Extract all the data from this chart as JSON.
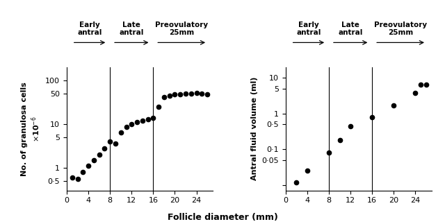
{
  "left_x": [
    1,
    2,
    3,
    4,
    5,
    6,
    7,
    8,
    9,
    10,
    11,
    12,
    13,
    14,
    15,
    16,
    17,
    18,
    19,
    20,
    21,
    22,
    23,
    24,
    25,
    26
  ],
  "left_y": [
    0.6,
    0.55,
    0.8,
    1.1,
    1.5,
    2.0,
    2.8,
    4.0,
    3.5,
    6.5,
    8.5,
    10,
    11,
    12,
    13,
    14,
    25,
    42,
    45,
    47,
    48,
    49,
    50,
    52,
    50,
    48
  ],
  "right_x": [
    2,
    4,
    8,
    10,
    12,
    16,
    20,
    24,
    25
  ],
  "right_y": [
    0.012,
    0.025,
    0.08,
    0.18,
    0.45,
    0.8,
    1.7,
    3.8,
    6.5
  ],
  "right_x2": [
    26
  ],
  "right_y2": [
    6.5
  ],
  "vline1": 8,
  "vline2": 16,
  "xlabel": "Follicle diameter (mm)",
  "left_ylabel_line1": "No. of granulosa cells",
  "left_ylabel_line2": "×10⁻⁶",
  "right_ylabel": "Antral fluid volume (ml)",
  "left_yticks": [
    0.5,
    1,
    5,
    10,
    50,
    100
  ],
  "left_ytick_labels": [
    "0·5",
    "1",
    "5",
    "10",
    "50",
    "100"
  ],
  "right_yticks": [
    0.01,
    0.05,
    0.1,
    0.5,
    1,
    5,
    10
  ],
  "right_ytick_labels": [
    "",
    "0·05",
    "0·1",
    "0·5",
    "1",
    "5",
    "10"
  ],
  "left_ylim": [
    0.3,
    200
  ],
  "right_ylim": [
    0.007,
    20
  ],
  "xlim": [
    0,
    27
  ],
  "xticks": [
    0,
    4,
    8,
    12,
    16,
    20,
    24
  ],
  "arrow1_xstart": 1,
  "arrow1_xend": 7.5,
  "arrow2_xstart": 8.5,
  "arrow2_xend": 15.5,
  "arrow3_xstart": 16.5,
  "arrow3_xend": 26.0,
  "label_early": "Early\nantral",
  "label_late": "Late\nantral",
  "label_preov": "Preovulatory\n25mm",
  "bg_color": "#ffffff",
  "dot_color": "black",
  "dot_size": 4.5
}
